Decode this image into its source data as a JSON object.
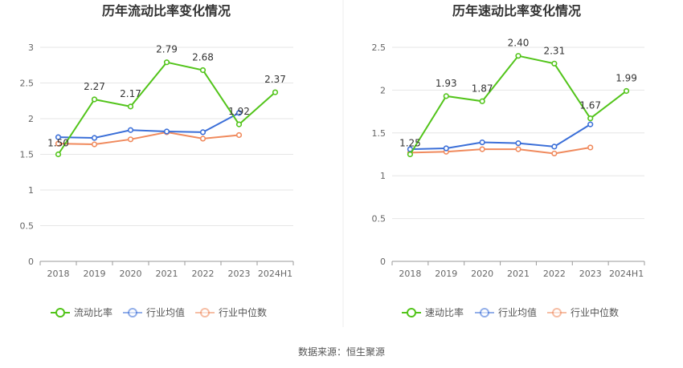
{
  "source_label": "数据来源：恒生聚源",
  "colors": {
    "primary": "#52c41a",
    "industry_avg": "#3b6fd8",
    "industry_median": "#f08a5d",
    "axis": "#999999",
    "grid": "#e6e6e6",
    "divider": "#eeeeee"
  },
  "chart_data": [
    {
      "type": "line",
      "title": "历年流动比率变化情况",
      "categories": [
        "2018",
        "2019",
        "2020",
        "2021",
        "2022",
        "2023",
        "2024H1"
      ],
      "ylim": [
        0,
        3
      ],
      "yticks": [
        0,
        0.5,
        1,
        1.5,
        2,
        2.5,
        3
      ],
      "ytick_labels": [
        "0",
        "0.5",
        "1",
        "1.5",
        "2",
        "2.5",
        "3"
      ],
      "grid": true,
      "legend_position": "bottom",
      "series": [
        {
          "name": "流动比率",
          "key": "primary",
          "values": [
            1.5,
            2.27,
            2.17,
            2.79,
            2.68,
            1.92,
            2.37
          ],
          "labels": [
            "1.50",
            "2.27",
            "2.17",
            "2.79",
            "2.68",
            "1.92",
            "2.37"
          ]
        },
        {
          "name": "行业均值",
          "key": "industry_avg",
          "values": [
            1.74,
            1.73,
            1.84,
            1.82,
            1.81,
            2.08,
            null
          ]
        },
        {
          "name": "行业中位数",
          "key": "industry_median",
          "values": [
            1.65,
            1.64,
            1.71,
            1.81,
            1.72,
            1.77,
            null
          ]
        }
      ]
    },
    {
      "type": "line",
      "title": "历年速动比率变化情况",
      "categories": [
        "2018",
        "2019",
        "2020",
        "2021",
        "2022",
        "2023",
        "2024H1"
      ],
      "ylim": [
        0,
        2.5
      ],
      "yticks": [
        0,
        0.5,
        1,
        1.5,
        2,
        2.5
      ],
      "ytick_labels": [
        "0",
        "0.5",
        "1",
        "1.5",
        "2",
        "2.5"
      ],
      "grid": true,
      "legend_position": "bottom",
      "series": [
        {
          "name": "速动比率",
          "key": "primary",
          "values": [
            1.25,
            1.93,
            1.87,
            2.4,
            2.31,
            1.67,
            1.99
          ],
          "labels": [
            "1.25",
            "1.93",
            "1.87",
            "2.40",
            "2.31",
            "1.67",
            "1.99"
          ]
        },
        {
          "name": "行业均值",
          "key": "industry_avg",
          "values": [
            1.31,
            1.32,
            1.39,
            1.38,
            1.34,
            1.6,
            null
          ]
        },
        {
          "name": "行业中位数",
          "key": "industry_median",
          "values": [
            1.27,
            1.28,
            1.31,
            1.31,
            1.26,
            1.33,
            null
          ]
        }
      ]
    }
  ]
}
